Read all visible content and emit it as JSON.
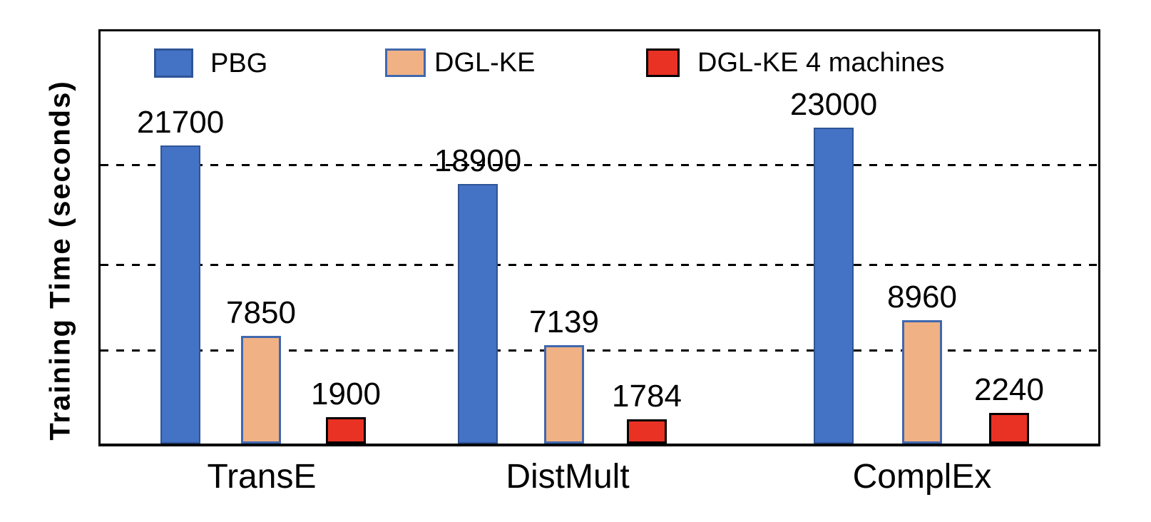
{
  "chart_data": {
    "type": "bar",
    "title": "",
    "ylabel": "Training Time (seconds)",
    "xlabel": "",
    "categories": [
      "TransE",
      "DistMult",
      "ComplEx"
    ],
    "series": [
      {
        "name": "PBG",
        "color": "#4472C4",
        "border_color": "#2F5597",
        "values": [
          21700,
          18900,
          23000
        ]
      },
      {
        "name": "DGL-KE",
        "color": "#F0B185",
        "border_color": "#4068AE",
        "values": [
          7850,
          7139,
          8960
        ]
      },
      {
        "name": "DGL-KE 4 machines",
        "color": "#E93223",
        "border_color": "#000000",
        "values": [
          1900,
          1784,
          2240
        ]
      }
    ],
    "ylim": [
      0,
      30000
    ],
    "y_tick_labels_visible": false,
    "gridlines": "3 horizontal dashed black lines, unlabeled",
    "legend_position": "top-inside",
    "value_labels": true
  }
}
